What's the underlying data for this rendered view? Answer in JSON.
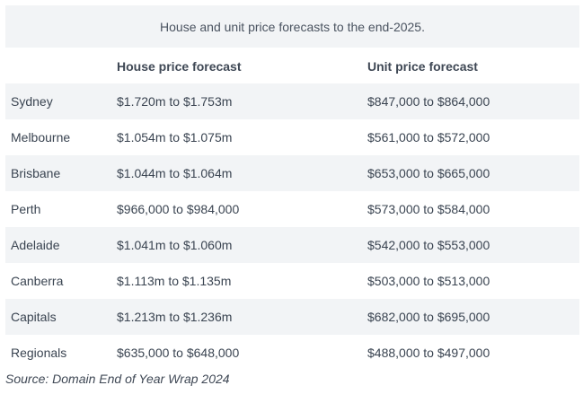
{
  "caption": "House and unit price forecasts to the end-2025.",
  "headers": {
    "city": "",
    "house": "House price forecast",
    "unit": "Unit price forecast"
  },
  "rows": [
    {
      "city": "Sydney",
      "house": "$1.720m to $1.753m",
      "unit": "$847,000 to $864,000"
    },
    {
      "city": "Melbourne",
      "house": "$1.054m to $1.075m",
      "unit": "$561,000 to $572,000"
    },
    {
      "city": "Brisbane",
      "house": "$1.044m to $1.064m",
      "unit": "$653,000 to $665,000"
    },
    {
      "city": "Perth",
      "house": "$966,000 to $984,000",
      "unit": "$573,000 to $584,000"
    },
    {
      "city": "Adelaide",
      "house": "$1.041m to $1.060m",
      "unit": "$542,000 to $553,000"
    },
    {
      "city": "Canberra",
      "house": "$1.113m to $1.135m",
      "unit": "$503,000 to $513,000"
    },
    {
      "city": "Capitals",
      "house": "$1.213m to $1.236m",
      "unit": "$682,000 to $695,000"
    },
    {
      "city": "Regionals",
      "house": "$635,000 to $648,000",
      "unit": "$488,000 to $497,000"
    }
  ],
  "source": "Source: Domain End of Year Wrap 2024"
}
